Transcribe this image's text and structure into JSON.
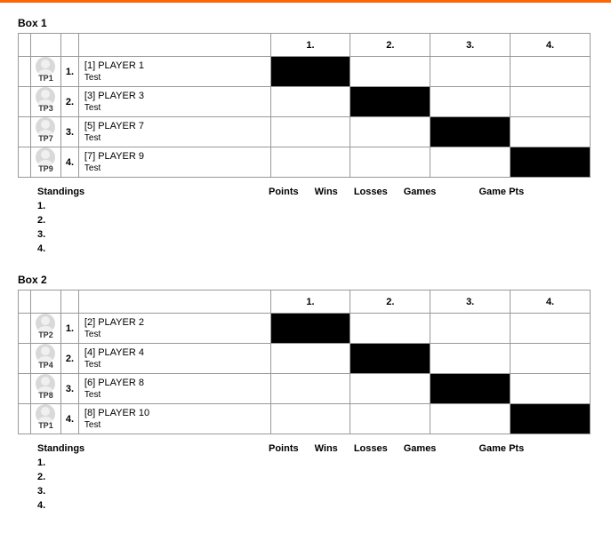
{
  "accent_color": "#ff6600",
  "border_color": "#999999",
  "black_color": "#000000",
  "avatar_bg": "#d9d9d9",
  "standings_header": "Standings",
  "standings_cols": [
    "Points",
    "Wins",
    "Losses",
    "Games",
    "Game Pts"
  ],
  "col_headers": [
    "1.",
    "2.",
    "3.",
    "4."
  ],
  "standings_ranks": [
    "1.",
    "2.",
    "3.",
    "4."
  ],
  "boxes": [
    {
      "title": "Box 1",
      "players": [
        {
          "tp": "TP1",
          "rank": "1.",
          "name": "[1] PLAYER 1",
          "sub": "Test",
          "black_col": 0
        },
        {
          "tp": "TP3",
          "rank": "2.",
          "name": "[3] PLAYER 3",
          "sub": "Test",
          "black_col": 1
        },
        {
          "tp": "TP7",
          "rank": "3.",
          "name": "[5] PLAYER 7",
          "sub": "Test",
          "black_col": 2
        },
        {
          "tp": "TP9",
          "rank": "4.",
          "name": "[7] PLAYER 9",
          "sub": "Test",
          "black_col": 3
        }
      ]
    },
    {
      "title": "Box 2",
      "players": [
        {
          "tp": "TP2",
          "rank": "1.",
          "name": "[2] PLAYER 2",
          "sub": "Test",
          "black_col": 0
        },
        {
          "tp": "TP4",
          "rank": "2.",
          "name": "[4] PLAYER 4",
          "sub": "Test",
          "black_col": 1
        },
        {
          "tp": "TP8",
          "rank": "3.",
          "name": "[6] PLAYER 8",
          "sub": "Test",
          "black_col": 2
        },
        {
          "tp": "TP1",
          "rank": "4.",
          "name": "[8] PLAYER 10",
          "sub": "Test",
          "black_col": 3
        }
      ]
    }
  ]
}
